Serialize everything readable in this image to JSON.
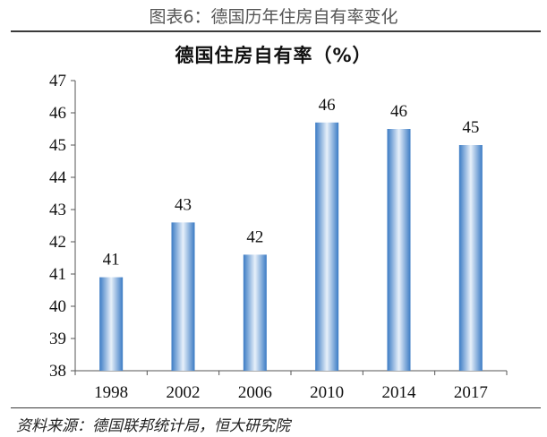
{
  "figure_title": "图表6：德国历年住房自有率变化",
  "source": "资料来源：德国联邦统计局，恒大研究院",
  "colors": {
    "bar_edge": "#3b7bc4",
    "bar_center": "#e7f0fa",
    "axis": "#555555"
  },
  "chart_data": {
    "type": "bar",
    "title": "德国住房自有率（%）",
    "categories": [
      "1998",
      "2002",
      "2006",
      "2010",
      "2014",
      "2017"
    ],
    "values": [
      40.9,
      42.6,
      41.6,
      45.7,
      45.5,
      45.0
    ],
    "data_labels": [
      "41",
      "43",
      "42",
      "46",
      "46",
      "45"
    ],
    "ylim": [
      38,
      47
    ],
    "yticks": [
      38,
      39,
      40,
      41,
      42,
      43,
      44,
      45,
      46,
      47
    ],
    "xlabel": "",
    "ylabel": "",
    "grid": false,
    "legend": "none"
  }
}
